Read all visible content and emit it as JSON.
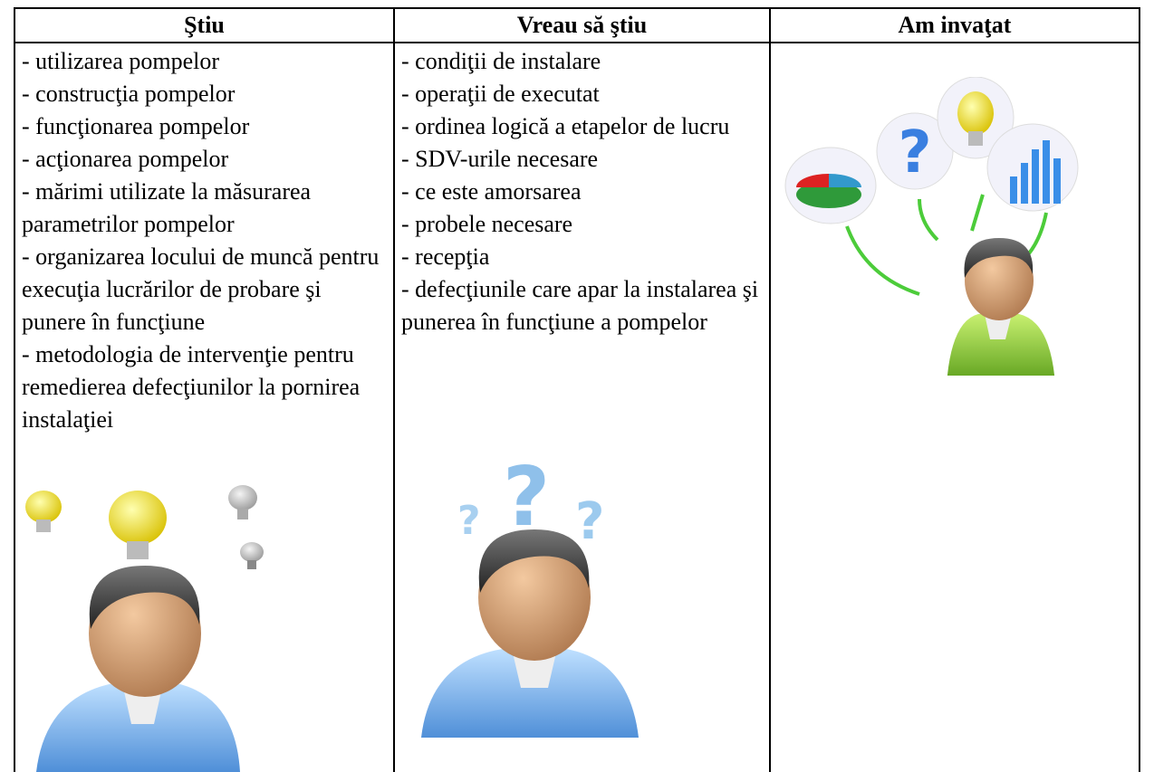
{
  "table": {
    "headers": [
      "Ştiu",
      "Vreau să ştiu",
      "Am invaţat"
    ],
    "columns": [
      [
        "- utilizarea pompelor",
        "- construcţia pompelor",
        "- funcţionarea pompelor",
        "- acţionarea pompelor",
        "- mărimi utilizate la măsurarea parametrilor pompelor",
        "- organizarea locului de muncă pentru execuţia lucrărilor de probare şi punere în funcţiune",
        "- metodologia de intervenţie pentru remedierea defecţiunilor la pornirea instalaţiei"
      ],
      [
        "- condiţii de instalare",
        "- operaţii de executat",
        "- ordinea logică a etapelor de lucru",
        "- SDV-urile necesare",
        "- ce este amorsarea",
        "- probele necesare",
        "- recepţia",
        "- defecţiunile care apar la instalarea şi punerea în funcţiune a pompelor"
      ]
    ]
  }
}
